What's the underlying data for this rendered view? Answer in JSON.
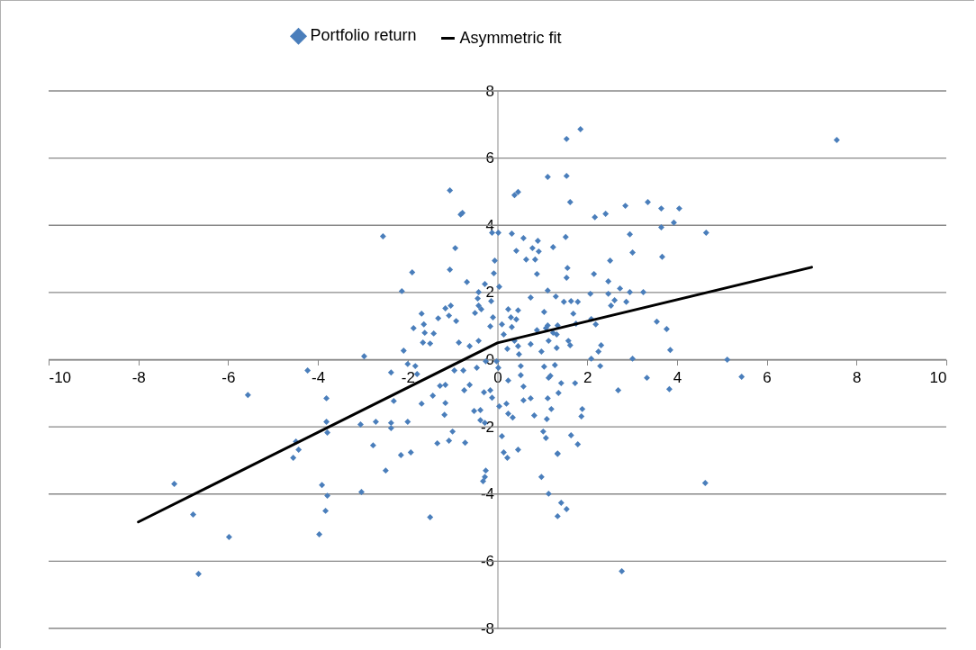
{
  "chart_data": {
    "type": "scatter",
    "xlim": [
      -10,
      10
    ],
    "ylim": [
      -8,
      8
    ],
    "xticks": [
      -10,
      -8,
      -6,
      -4,
      -2,
      0,
      2,
      4,
      6,
      8,
      10
    ],
    "yticks": [
      -8,
      -6,
      -4,
      -2,
      0,
      2,
      4,
      6,
      8
    ],
    "grid": "y",
    "legend": "top",
    "series": [
      {
        "name": "Portfolio return",
        "color": "#4a7ebb",
        "marker": "diamond",
        "x": [
          -2.55,
          -2.13,
          -1.9,
          -2.97,
          -4.23,
          -5.56,
          -3.81,
          -2.37,
          -2.31,
          -3.81,
          -3.79,
          -4.49,
          -4.43,
          -4.55,
          -3.05,
          -2.71,
          -2.37,
          -2.37,
          -2.0,
          -2.77,
          -2.15,
          -1.93,
          -2.49,
          -3.03,
          -3.91,
          -3.79,
          -3.83,
          -3.97,
          -7.2,
          -6.78,
          -5.98,
          -6.66,
          -2.09,
          -2.0,
          -1.87,
          -1.06,
          -0.82,
          -0.78,
          -0.94,
          -1.06,
          -0.68,
          -0.28,
          -0.08,
          -0.06,
          -0.12,
          0.02,
          0.04,
          -0.14,
          0.38,
          0.46,
          1.12,
          0.32,
          0.58,
          0.42,
          0.64,
          0.78,
          0.9,
          0.92,
          0.84,
          0.88,
          1.24,
          0.74,
          1.12,
          1.3,
          -1.16,
          -1.04,
          -1.08,
          -0.92,
          -1.32,
          -1.69,
          -1.64,
          -1.62,
          -1.42,
          -1.66,
          -1.5,
          -1.83,
          -1.79,
          -0.86,
          -0.62,
          -0.42,
          -0.5,
          -0.42,
          -0.36,
          -0.44,
          -0.42,
          -0.1,
          -0.16,
          0.1,
          0.24,
          0.46,
          0.3,
          0.42,
          0.32,
          0.14,
          0.38,
          0.22,
          0.46,
          0.48,
          0.74,
          0.98,
          0.88,
          1.08,
          1.14,
          1.32,
          1.04,
          0.52,
          -0.02,
          0.02,
          -0.26,
          -0.46,
          -0.76,
          -0.96,
          -1.69,
          -1.44,
          -1.28,
          -1.16,
          -1.16,
          -1.18,
          -0.74,
          -0.62,
          -0.52,
          -0.38,
          -0.38,
          -0.28,
          -0.3,
          -0.16,
          -0.12,
          0.04,
          -1.34,
          -1.08,
          -1.0,
          -0.72,
          -1.5,
          -0.26,
          -0.28,
          -0.32,
          0.1,
          0.14,
          0.22,
          0.46,
          0.24,
          0.2,
          0.24,
          0.34,
          0.58,
          0.58,
          0.74,
          0.82,
          0.52,
          1.14,
          1.12,
          1.2,
          1.1,
          1.02,
          1.08,
          0.98,
          1.14,
          1.34,
          1.34,
          1.85,
          1.54,
          1.54,
          1.62,
          2.17,
          2.41,
          2.85,
          3.35,
          3.65,
          4.05,
          3.93,
          3.65,
          4.65,
          1.52,
          2.95,
          3.01,
          3.67,
          2.51,
          1.56,
          1.54,
          2.15,
          2.47,
          2.73,
          2.95,
          3.25,
          2.07,
          2.47,
          2.87,
          2.61,
          2.53,
          1.48,
          1.64,
          1.79,
          1.69,
          1.04,
          1.75,
          2.09,
          2.19,
          3.55,
          3.77,
          1.12,
          1.24,
          1.34,
          1.32,
          1.58,
          1.62,
          2.31,
          2.25,
          2.09,
          2.29,
          3.01,
          3.85,
          5.12,
          5.44,
          3.33,
          1.28,
          1.18,
          2.69,
          3.83,
          4.63,
          2.77,
          1.42,
          1.73,
          1.36,
          1.89,
          1.87,
          1.64,
          1.79,
          1.34,
          1.42,
          1.54,
          7.56
        ],
        "values": [
          3.67,
          2.04,
          2.6,
          0.1,
          -0.32,
          -1.05,
          -1.15,
          -0.38,
          -1.23,
          -1.85,
          -2.17,
          -2.44,
          -2.68,
          -2.92,
          -1.93,
          -1.85,
          -1.88,
          -2.04,
          -1.85,
          -2.55,
          -2.84,
          -2.76,
          -3.3,
          -3.94,
          -3.73,
          -4.05,
          -4.5,
          -5.2,
          -3.7,
          -4.61,
          -5.28,
          -6.38,
          0.27,
          -0.13,
          0.94,
          5.04,
          4.32,
          4.37,
          3.32,
          2.68,
          2.31,
          2.25,
          2.57,
          2.95,
          3.78,
          3.78,
          2.17,
          1.74,
          4.9,
          4.99,
          5.44,
          3.75,
          3.62,
          3.24,
          2.98,
          3.32,
          3.54,
          3.22,
          2.98,
          2.55,
          3.35,
          1.85,
          2.06,
          1.88,
          1.53,
          1.61,
          1.31,
          1.15,
          1.23,
          1.37,
          1.05,
          0.8,
          0.78,
          0.51,
          0.48,
          -0.19,
          -0.43,
          0.51,
          0.4,
          0.56,
          1.39,
          1.61,
          1.5,
          1.82,
          2.01,
          1.26,
          0.99,
          1.05,
          1.5,
          1.47,
          1.26,
          1.2,
          0.97,
          0.75,
          0.56,
          0.32,
          0.4,
          0.16,
          0.46,
          0.24,
          0.88,
          0.94,
          0.56,
          0.75,
          -0.21,
          -0.19,
          -0.05,
          -0.24,
          -0.05,
          -0.24,
          -0.32,
          -0.32,
          -1.31,
          -1.07,
          -0.78,
          -0.75,
          -1.29,
          -1.64,
          -0.91,
          -0.75,
          -1.53,
          -1.5,
          -1.8,
          -1.88,
          -0.97,
          -0.91,
          -1.13,
          -1.39,
          -2.49,
          -2.41,
          -2.14,
          -2.47,
          -4.69,
          -3.3,
          -3.49,
          -3.62,
          -2.28,
          -2.76,
          -2.92,
          -2.68,
          -0.62,
          -1.31,
          -1.61,
          -1.72,
          -0.8,
          -1.21,
          -1.15,
          -1.66,
          -0.46,
          -0.54,
          -1.15,
          -1.47,
          -1.77,
          -2.14,
          -2.33,
          -3.49,
          -3.99,
          -2.79,
          -4.66,
          6.86,
          6.57,
          5.47,
          4.69,
          4.24,
          4.34,
          4.58,
          4.69,
          4.5,
          4.5,
          4.08,
          3.94,
          3.78,
          3.65,
          3.73,
          3.19,
          3.06,
          2.95,
          2.73,
          2.44,
          2.55,
          2.33,
          2.12,
          2.01,
          2.01,
          1.96,
          1.96,
          1.72,
          1.77,
          1.61,
          1.72,
          1.74,
          1.72,
          1.37,
          1.42,
          1.07,
          1.21,
          1.05,
          1.13,
          0.91,
          1.02,
          0.8,
          1.02,
          0.35,
          0.56,
          0.43,
          0.43,
          0.24,
          0.03,
          -0.19,
          0.03,
          0.29,
          0.0,
          -0.51,
          -0.54,
          -0.16,
          -0.48,
          -0.91,
          -0.88,
          -3.67,
          -6.3,
          -0.7,
          -0.7,
          -0.99,
          -1.47,
          -1.69,
          -2.25,
          -2.52,
          -2.81,
          -4.26,
          -4.45,
          6.54
        ]
      },
      {
        "name": "Asymmetric fit",
        "type": "line",
        "color": "#000000",
        "marker": "none",
        "line_style": "solid",
        "x": [
          -8,
          0,
          7
        ],
        "values": [
          -4.83,
          0.5,
          2.75
        ]
      }
    ]
  }
}
